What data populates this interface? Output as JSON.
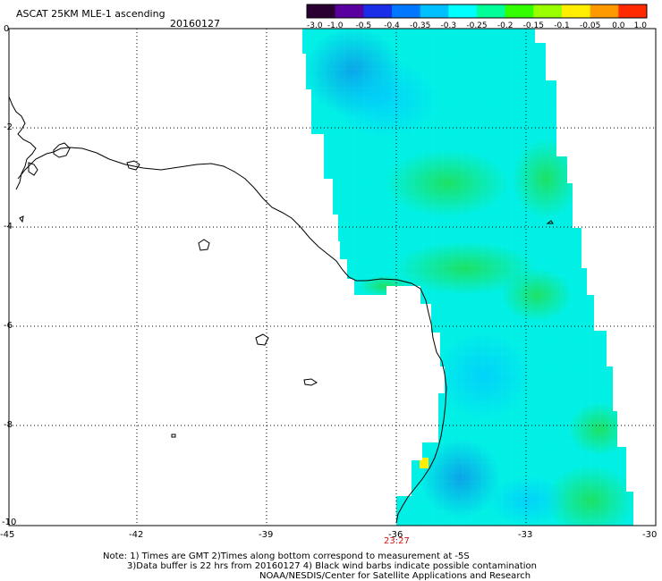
{
  "header": {
    "product": "ASCAT 25KM MLE-1 ascending",
    "date": "20160127"
  },
  "colorbar": {
    "ticks": [
      "-3.0",
      "-1.0",
      "-0.5",
      "-0.4",
      "-0.35",
      "-0.3",
      "-0.25",
      "-0.2",
      "-0.15",
      "-0.1",
      "-0.05",
      "0.0",
      "1.0"
    ],
    "colors": [
      "#2a0033",
      "#5a00a0",
      "#1a2ee8",
      "#0077ff",
      "#00bfff",
      "#00ffff",
      "#00ff99",
      "#33ff00",
      "#99ff00",
      "#ffee00",
      "#ff9900",
      "#ff2a00"
    ]
  },
  "axes": {
    "lon_ticks": [
      "-45",
      "-42",
      "-39",
      "-36",
      "-33",
      "-30"
    ],
    "lat_ticks": [
      "0",
      "-2",
      "-4",
      "-6",
      "-8",
      "-10"
    ],
    "lon_range": [
      -45,
      -30
    ],
    "lat_range": [
      -10,
      0
    ]
  },
  "swath_time": "23:27",
  "notes": {
    "line1": "Note: 1) Times are GMT 2)Times along bottom correspond to measurement at -5S",
    "line2": "3)Data buffer is 22 hrs from 20160127 4) Black wind barbs indicate possible contamination",
    "line3": "NOAA/NESDIS/Center for Satellite Applications and Research"
  }
}
